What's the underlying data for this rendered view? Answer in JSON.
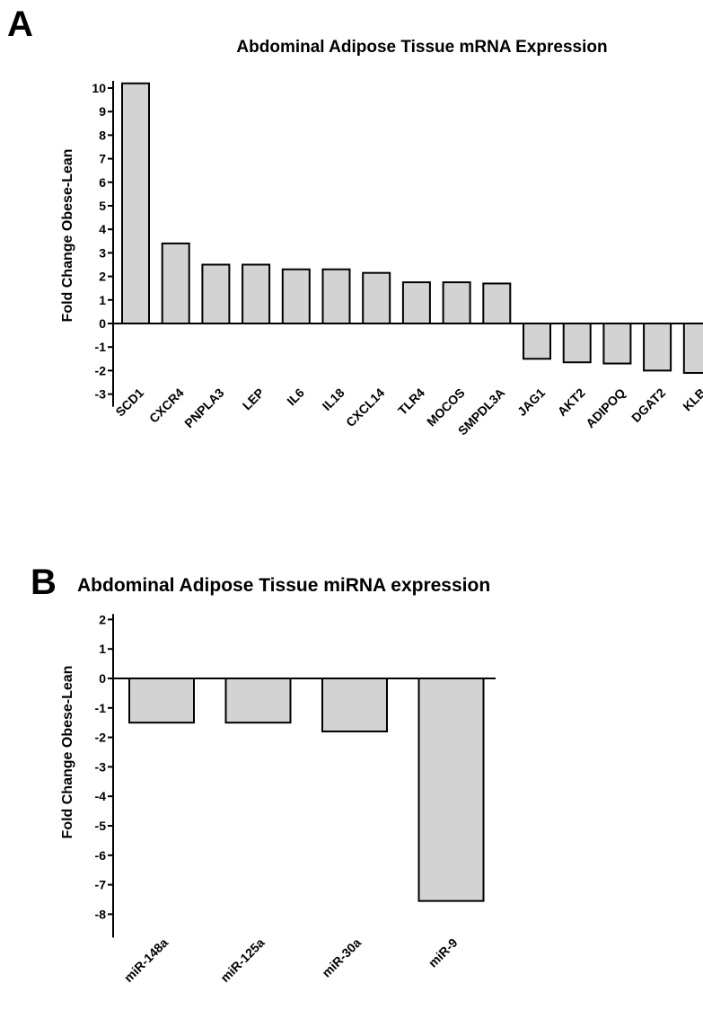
{
  "chart_data": [
    {
      "panel": "A",
      "type": "bar",
      "title": "Abdominal Adipose Tissue mRNA Expression",
      "xlabel": "",
      "ylabel": "Fold Change Obese-Lean",
      "ylim": [
        -3,
        10
      ],
      "yticks": [
        10,
        9,
        8,
        7,
        6,
        5,
        4,
        3,
        2,
        1,
        0,
        -1,
        -2,
        -3
      ],
      "categories": [
        "SCD1",
        "CXCR4",
        "PNPLA3",
        "LEP",
        "IL6",
        "IL18",
        "CXCL14",
        "TLR4",
        "MOCOS",
        "SMPDL3A",
        "JAG1",
        "AKT2",
        "ADIPOQ",
        "DGAT2",
        "KLB"
      ],
      "values": [
        10.2,
        3.4,
        2.5,
        2.5,
        2.3,
        2.3,
        2.15,
        1.75,
        1.75,
        1.7,
        -1.5,
        -1.65,
        -1.7,
        -2.0,
        -2.1
      ],
      "grid": false
    },
    {
      "panel": "B",
      "type": "bar",
      "title": "Abdominal Adipose Tissue miRNA expression",
      "xlabel": "",
      "ylabel": "Fold Change Obese-Lean",
      "ylim": [
        -8,
        2
      ],
      "yticks": [
        2,
        1,
        0,
        -1,
        -2,
        -3,
        -4,
        -5,
        -6,
        -7,
        -8
      ],
      "categories": [
        "miR-148a",
        "miR-125a",
        "miR-30a",
        "miR-9"
      ],
      "values": [
        -1.5,
        -1.5,
        -1.8,
        -7.55
      ],
      "grid": false
    }
  ]
}
